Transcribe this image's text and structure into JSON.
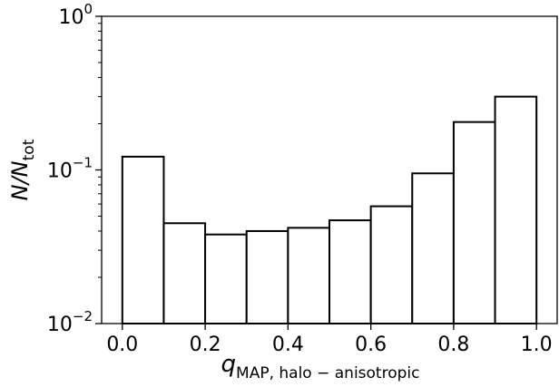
{
  "chart_data": {
    "type": "bar",
    "title": "",
    "xlabel": {
      "base": "q",
      "subscript": "MAP, halo − anisotropic"
    },
    "ylabel": {
      "base": "N/N",
      "subscript": "tot"
    },
    "yscale": "log",
    "ylim": [
      0.01,
      1
    ],
    "xlim": [
      -0.05,
      1.05
    ],
    "grid": false,
    "legend": "none",
    "bin_edges": [
      0.0,
      0.1,
      0.2,
      0.3,
      0.4,
      0.5,
      0.6,
      0.7,
      0.8,
      0.9,
      1.0
    ],
    "values": [
      0.122,
      0.045,
      0.038,
      0.04,
      0.042,
      0.047,
      0.058,
      0.095,
      0.205,
      0.3
    ],
    "x_ticks": [
      "0.0",
      "0.2",
      "0.4",
      "0.6",
      "0.8",
      "1.0"
    ],
    "y_ticks": [
      {
        "base": "10",
        "exp": "0"
      },
      {
        "base": "10",
        "exp": "−1"
      },
      {
        "base": "10",
        "exp": "−2"
      }
    ],
    "colors": {
      "bar_fill": "#ffffff",
      "bar_edge": "#000000",
      "axis": "#000000"
    }
  }
}
